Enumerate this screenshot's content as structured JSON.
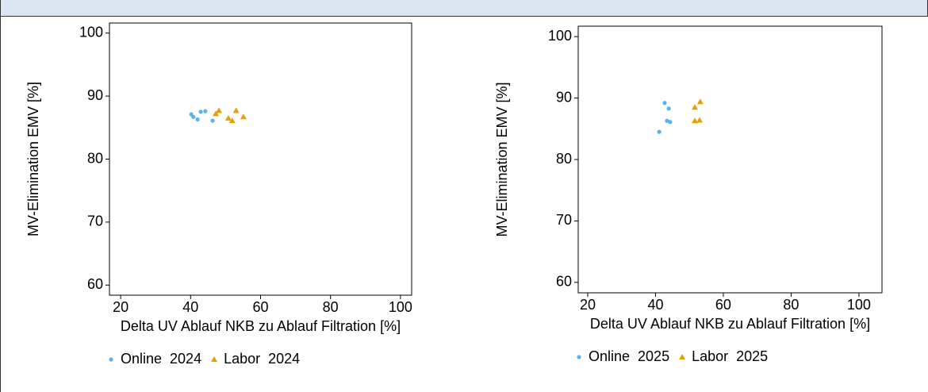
{
  "chart_data": [
    {
      "type": "scatter",
      "xlabel": "Delta UV Ablauf NKB zu Ablauf Filtration [%]",
      "ylabel": "MV-Elimination EMV [%]",
      "xlim": [
        16.8,
        103.2
      ],
      "ylim": [
        58.4,
        101.6
      ],
      "xticks": [
        20,
        40,
        60,
        80,
        100
      ],
      "yticks": [
        60,
        70,
        80,
        90,
        100
      ],
      "series": [
        {
          "name": "Online  2024",
          "color": "#56b4e9",
          "marker": "circle",
          "x": [
            40.2,
            40.8,
            42.0,
            42.9,
            44.2,
            46.3
          ],
          "values": [
            87.1,
            86.7,
            86.3,
            87.5,
            87.6,
            86.1
          ]
        },
        {
          "name": "Labor  2024",
          "color": "#e69f00",
          "marker": "triangle",
          "x": [
            47.2,
            48.1,
            50.8,
            51.9,
            53.0,
            55.1
          ],
          "values": [
            87.2,
            87.7,
            86.5,
            86.1,
            87.7,
            86.7
          ]
        }
      ]
    },
    {
      "type": "scatter",
      "xlabel": "Delta UV Ablauf NKB zu Ablauf Filtration [%]",
      "ylabel": "MV-Elimination EMV [%]",
      "xlim": [
        17.2,
        106.8
      ],
      "ylim": [
        58.3,
        101.7
      ],
      "xticks": [
        20,
        40,
        60,
        80,
        100
      ],
      "yticks": [
        60,
        70,
        80,
        90,
        100
      ],
      "series": [
        {
          "name": "Online  2025",
          "color": "#56b4e9",
          "marker": "circle",
          "x": [
            42.7,
            43.9,
            43.4,
            44.3,
            41.1
          ],
          "values": [
            89.2,
            88.3,
            86.3,
            86.1,
            84.5
          ]
        },
        {
          "name": "Labor  2025",
          "color": "#e69f00",
          "marker": "triangle",
          "x": [
            51.6,
            53.2,
            51.6,
            53.0
          ],
          "values": [
            88.5,
            89.4,
            86.3,
            86.4
          ]
        }
      ]
    }
  ]
}
